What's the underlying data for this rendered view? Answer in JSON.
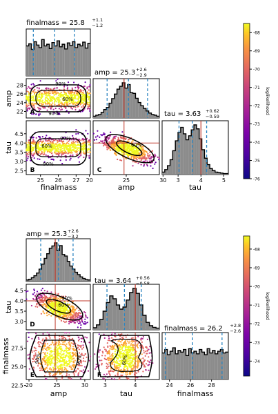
{
  "chart_data": [
    {
      "type": "corner",
      "parameters": [
        "finalmass",
        "amp",
        "tau"
      ],
      "titles": {
        "finalmass": {
          "label": "finalmass = 25.8",
          "sup": "+1.1",
          "sub": "−1.2"
        },
        "amp": {
          "label": "amp = 25.3",
          "sup": "+2.6",
          "sub": "−2.9"
        },
        "tau": {
          "label": "tau = 3.63",
          "sup": "+0.62",
          "sub": "−0.59"
        }
      },
      "ticks": {
        "finalmass": [
          25,
          26,
          27
        ],
        "amp": [
          22,
          24,
          26,
          28
        ],
        "amp_bottom": [
          20,
          25,
          30
        ],
        "tau": [
          2.5,
          3.0,
          3.5,
          4.0,
          4.5
        ],
        "tau_bottom": [
          3,
          4,
          5
        ]
      },
      "ranges": {
        "finalmass": [
          24.2,
          27.8
        ],
        "amp": [
          20.5,
          29.5
        ],
        "tau": [
          2.3,
          5.2
        ]
      },
      "quantiles": {
        "finalmass": [
          24.6,
          25.8,
          26.9
        ],
        "amp": [
          22.4,
          25.3,
          27.9
        ],
        "tau": [
          3.04,
          3.63,
          4.25
        ]
      },
      "injected": {
        "amp": 24.7,
        "tau": 4.0
      },
      "contour_labels": [
        "90%",
        "60%",
        "90%"
      ],
      "panel_letters": [
        "A",
        "B",
        "C"
      ],
      "histograms": {
        "finalmass": [
          0.7,
          0.75,
          0.62,
          0.8,
          0.72,
          0.66,
          0.85,
          0.7,
          0.74,
          0.64,
          0.78,
          0.7,
          0.82,
          0.68,
          0.74,
          0.63,
          0.77,
          0.71,
          0.8,
          0.66,
          0.74,
          0.7,
          0.79,
          0.65,
          0.76
        ],
        "amp": [
          0.05,
          0.08,
          0.1,
          0.16,
          0.24,
          0.3,
          0.42,
          0.55,
          0.68,
          0.82,
          0.9,
          1.0,
          0.85,
          0.95,
          0.72,
          0.7,
          0.56,
          0.44,
          0.35,
          0.27,
          0.2,
          0.14,
          0.1,
          0.08,
          0.05
        ],
        "tau": [
          0.05,
          0.1,
          0.18,
          0.3,
          0.48,
          0.68,
          0.85,
          0.95,
          0.82,
          0.7,
          0.78,
          0.9,
          1.0,
          0.92,
          0.72,
          0.5,
          0.33,
          0.2,
          0.12,
          0.08,
          0.05,
          0.04,
          0.03,
          0.02,
          0.02
        ]
      },
      "colorbar": {
        "label": "loglikelihood",
        "ticks": [
          -68,
          -69,
          -70,
          -71,
          -72,
          -73,
          -74,
          -75,
          -76
        ],
        "range": [
          -76,
          -67.5
        ],
        "colormap": "plasma"
      }
    },
    {
      "type": "corner",
      "parameters": [
        "amp",
        "tau",
        "finalmass"
      ],
      "titles": {
        "amp": {
          "label": "amp = 25.3",
          "sup": "+2.6",
          "sub": "−3.2"
        },
        "tau": {
          "label": "tau = 3.64",
          "sup": "+0.56",
          "sub": "−0.58"
        },
        "finalmass": {
          "label": "finalmass = 26.2",
          "sup": "+2.8",
          "sub": "−2.6"
        }
      },
      "ticks": {
        "tau": [
          3.0,
          3.5,
          4.0,
          4.5
        ],
        "tau_bottom": [
          3,
          4
        ],
        "finalmass": [
          22.5,
          25.0,
          27.5
        ],
        "finalmass_bottom": [
          24,
          26,
          28
        ],
        "amp_bottom": [
          20,
          25,
          30
        ]
      },
      "ranges": {
        "amp": [
          19.5,
          31
        ],
        "tau": [
          2.6,
          4.8
        ],
        "finalmass": [
          23.3,
          29.6
        ]
      },
      "quantiles": {
        "amp": [
          22.1,
          25.3,
          27.9
        ],
        "tau": [
          3.06,
          3.64,
          4.2
        ],
        "finalmass": [
          23.6,
          26.2,
          29.0
        ]
      },
      "injected": {
        "amp": 24.7,
        "tau": 4.0
      },
      "contour_labels": [
        "90%",
        "60%",
        "90%"
      ],
      "panel_letters": [
        "D",
        "E",
        "F"
      ],
      "histograms": {
        "amp": [
          0.04,
          0.06,
          0.1,
          0.15,
          0.22,
          0.32,
          0.45,
          0.6,
          0.72,
          0.86,
          0.92,
          1.0,
          0.8,
          0.93,
          0.7,
          0.66,
          0.52,
          0.4,
          0.32,
          0.24,
          0.18,
          0.12,
          0.08,
          0.05,
          0.04
        ],
        "tau": [
          0.05,
          0.12,
          0.25,
          0.45,
          0.66,
          0.82,
          0.75,
          0.6,
          0.5,
          0.55,
          0.72,
          0.9,
          1.0,
          0.88,
          0.6,
          0.35,
          0.18,
          0.1,
          0.06,
          0.04
        ],
        "finalmass": [
          0.62,
          0.7,
          0.58,
          0.66,
          0.74,
          0.6,
          0.68,
          0.64,
          0.7,
          0.56,
          0.72,
          0.62,
          0.66,
          0.6,
          0.7,
          0.64,
          0.58,
          0.72,
          0.62,
          0.68,
          0.6,
          0.66,
          0.7,
          0.62,
          0.64
        ]
      },
      "colorbar": {
        "label": "loglikelihood",
        "ticks": [
          -68,
          -69,
          -70,
          -71,
          -72,
          -73,
          -74
        ],
        "range": [
          -74.8,
          -67.3
        ],
        "colormap": "plasma"
      }
    }
  ]
}
